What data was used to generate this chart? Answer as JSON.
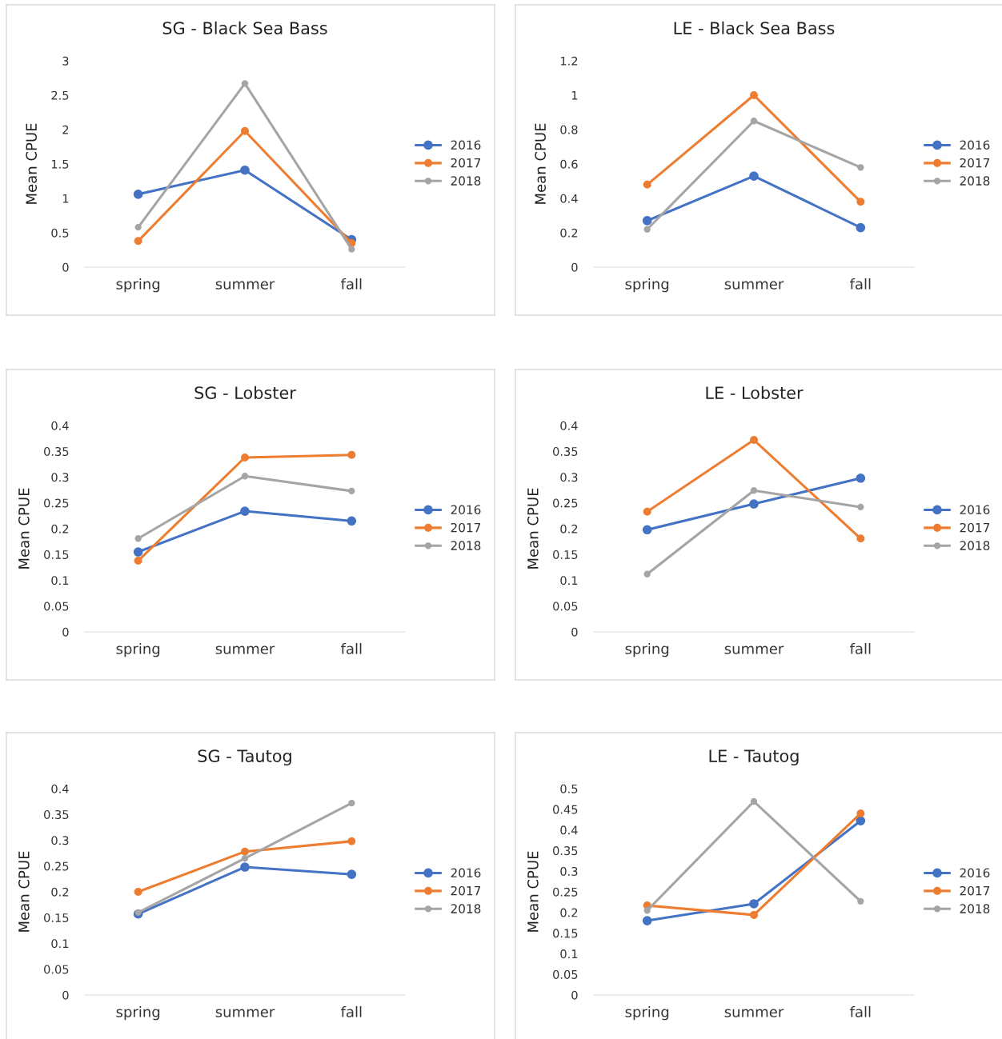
{
  "chart_data": [
    {
      "type": "line",
      "title": "SG - Black Sea Bass",
      "ylabel": "Mean CPUE",
      "categories": [
        "spring",
        "summer",
        "fall"
      ],
      "ylim": [
        0,
        3
      ],
      "yticks": [
        0,
        0.5,
        1,
        1.5,
        2,
        2.5,
        3
      ],
      "legend": "right",
      "marker": "circle",
      "series": [
        {
          "name": "2016",
          "color": "#4472c4",
          "values": [
            1.06,
            1.41,
            0.4
          ]
        },
        {
          "name": "2017",
          "color": "#ed7d31",
          "values": [
            0.38,
            1.98,
            0.35
          ]
        },
        {
          "name": "2018",
          "color": "#a5a5a5",
          "values": [
            0.58,
            2.67,
            0.26
          ]
        }
      ]
    },
    {
      "type": "line",
      "title": "LE - Black Sea Bass",
      "ylabel": "Mean CPUE",
      "categories": [
        "spring",
        "summer",
        "fall"
      ],
      "ylim": [
        0,
        1.2
      ],
      "yticks": [
        0,
        0.2,
        0.4,
        0.6,
        0.8,
        1,
        1.2
      ],
      "legend": "right",
      "marker": "circle",
      "series": [
        {
          "name": "2016",
          "color": "#4472c4",
          "values": [
            0.27,
            0.53,
            0.23
          ]
        },
        {
          "name": "2017",
          "color": "#ed7d31",
          "values": [
            0.48,
            1.0,
            0.38
          ]
        },
        {
          "name": "2018",
          "color": "#a5a5a5",
          "values": [
            0.22,
            0.85,
            0.58
          ]
        }
      ]
    },
    {
      "type": "line",
      "title": "SG - Lobster",
      "ylabel": "Mean CPUE",
      "categories": [
        "spring",
        "summer",
        "fall"
      ],
      "ylim": [
        0,
        0.4
      ],
      "yticks": [
        0,
        0.05,
        0.1,
        0.15,
        0.2,
        0.25,
        0.3,
        0.35,
        0.4
      ],
      "legend": "right",
      "marker": "circle",
      "series": [
        {
          "name": "2016",
          "color": "#4472c4",
          "values": [
            0.155,
            0.234,
            0.215
          ]
        },
        {
          "name": "2017",
          "color": "#ed7d31",
          "values": [
            0.138,
            0.338,
            0.343
          ]
        },
        {
          "name": "2018",
          "color": "#a5a5a5",
          "values": [
            0.181,
            0.302,
            0.273
          ]
        }
      ]
    },
    {
      "type": "line",
      "title": "LE - Lobster",
      "ylabel": "Mean CPUE",
      "categories": [
        "spring",
        "summer",
        "fall"
      ],
      "ylim": [
        0,
        0.4
      ],
      "yticks": [
        0,
        0.05,
        0.1,
        0.15,
        0.2,
        0.25,
        0.3,
        0.35,
        0.4
      ],
      "legend": "right",
      "marker": "circle",
      "series": [
        {
          "name": "2016",
          "color": "#4472c4",
          "values": [
            0.198,
            0.248,
            0.298
          ]
        },
        {
          "name": "2017",
          "color": "#ed7d31",
          "values": [
            0.233,
            0.372,
            0.181
          ]
        },
        {
          "name": "2018",
          "color": "#a5a5a5",
          "values": [
            0.112,
            0.274,
            0.242
          ]
        }
      ]
    },
    {
      "type": "line",
      "title": "SG - Tautog",
      "ylabel": "Mean CPUE",
      "categories": [
        "spring",
        "summer",
        "fall"
      ],
      "ylim": [
        0,
        0.4
      ],
      "yticks": [
        0,
        0.05,
        0.1,
        0.15,
        0.2,
        0.25,
        0.3,
        0.35,
        0.4
      ],
      "legend": "right",
      "marker": "circle",
      "series": [
        {
          "name": "2016",
          "color": "#4472c4",
          "values": [
            0.157,
            0.248,
            0.234
          ]
        },
        {
          "name": "2017",
          "color": "#ed7d31",
          "values": [
            0.2,
            0.278,
            0.298
          ]
        },
        {
          "name": "2018",
          "color": "#a5a5a5",
          "values": [
            0.16,
            0.265,
            0.372
          ]
        }
      ]
    },
    {
      "type": "line",
      "title": "LE - Tautog",
      "ylabel": "Mean CPUE",
      "categories": [
        "spring",
        "summer",
        "fall"
      ],
      "ylim": [
        0,
        0.5
      ],
      "yticks": [
        0,
        0.05,
        0.1,
        0.15,
        0.2,
        0.25,
        0.3,
        0.35,
        0.4,
        0.45,
        0.5
      ],
      "legend": "right",
      "marker": "circle",
      "series": [
        {
          "name": "2016",
          "color": "#4472c4",
          "values": [
            0.18,
            0.221,
            0.422
          ]
        },
        {
          "name": "2017",
          "color": "#ed7d31",
          "values": [
            0.217,
            0.194,
            0.44
          ]
        },
        {
          "name": "2018",
          "color": "#a5a5a5",
          "values": [
            0.205,
            0.469,
            0.227
          ]
        }
      ]
    }
  ]
}
